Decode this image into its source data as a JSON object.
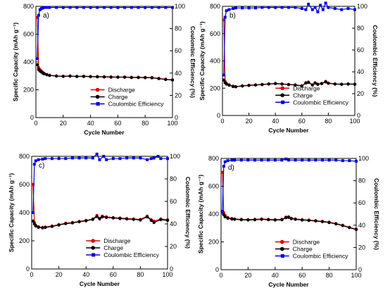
{
  "chart_data": [
    {
      "type": "line",
      "panel_label": "a)",
      "xlabel": "Cycle Number",
      "ylabel": "Specific Capacity (mAh g⁻¹)",
      "y2label": "Coulombic Efficiency (%)",
      "xlim": [
        0,
        100
      ],
      "ylim": [
        0,
        800
      ],
      "y2lim": [
        0,
        100
      ],
      "xticks": [
        "0",
        "20",
        "40",
        "60",
        "80",
        "100"
      ],
      "yticks": [
        "0",
        "200",
        "400",
        "600",
        "800"
      ],
      "y2ticks": [
        "0",
        "20",
        "40",
        "60",
        "80",
        "100"
      ],
      "legend": [
        "Discharge",
        "Charge",
        "Coulombic Efficiency"
      ],
      "series": [
        {
          "name": "Discharge",
          "axis": "left",
          "color": "#e00000",
          "x": [
            1,
            2,
            3,
            4,
            5,
            6,
            8,
            10,
            15,
            20,
            25,
            30,
            35,
            40,
            45,
            50,
            55,
            60,
            65,
            70,
            75,
            80,
            85,
            90,
            95,
            100
          ],
          "y": [
            720,
            360,
            345,
            335,
            325,
            318,
            310,
            305,
            300,
            298,
            300,
            297,
            298,
            296,
            295,
            294,
            293,
            292,
            292,
            290,
            290,
            289,
            288,
            282,
            276,
            272
          ]
        },
        {
          "name": "Charge",
          "axis": "left",
          "color": "#000000",
          "x": [
            1,
            2,
            3,
            4,
            5,
            6,
            8,
            10,
            15,
            20,
            25,
            30,
            35,
            40,
            45,
            50,
            55,
            60,
            65,
            70,
            75,
            80,
            85,
            90,
            95,
            100
          ],
          "y": [
            380,
            345,
            335,
            328,
            320,
            315,
            308,
            303,
            298,
            296,
            298,
            295,
            296,
            294,
            293,
            292,
            291,
            290,
            290,
            288,
            288,
            287,
            286,
            280,
            274,
            270
          ]
        },
        {
          "name": "Coulombic Efficiency",
          "axis": "right",
          "color": "#0000e0",
          "x": [
            1,
            2,
            3,
            4,
            5,
            6,
            8,
            10,
            15,
            20,
            25,
            30,
            35,
            40,
            45,
            50,
            55,
            60,
            65,
            70,
            75,
            80,
            85,
            90,
            95,
            100
          ],
          "y": [
            53,
            92,
            97,
            98,
            98.5,
            99,
            99,
            99,
            99,
            99,
            99,
            99,
            99,
            99,
            99,
            99,
            99,
            99,
            99,
            99,
            99,
            99,
            99,
            99,
            99,
            99
          ]
        }
      ]
    },
    {
      "type": "line",
      "panel_label": "b)",
      "xlabel": "Cycle Number",
      "ylabel": "Specific Capacity (mAh g⁻¹)",
      "y2label": "Coulombic Efficiency (%)",
      "xlim": [
        0,
        100
      ],
      "ylim": [
        0,
        800
      ],
      "y2lim": [
        0,
        100
      ],
      "xticks": [
        "0",
        "20",
        "40",
        "60",
        "80",
        "100"
      ],
      "yticks": [
        "0",
        "200",
        "400",
        "600",
        "800"
      ],
      "y2ticks": [
        "0",
        "20",
        "40",
        "60",
        "80",
        "100"
      ],
      "legend": [
        "Discharge",
        "Charge",
        "Coulombic Efficiency"
      ],
      "series": [
        {
          "name": "Discharge",
          "axis": "left",
          "color": "#e00000",
          "x": [
            1,
            2,
            3,
            5,
            8,
            10,
            15,
            20,
            25,
            30,
            35,
            40,
            45,
            50,
            55,
            60,
            63,
            65,
            68,
            70,
            72,
            75,
            78,
            80,
            85,
            90,
            95,
            100
          ],
          "y": [
            700,
            250,
            235,
            225,
            215,
            212,
            218,
            222,
            225,
            228,
            232,
            235,
            232,
            228,
            225,
            218,
            240,
            245,
            225,
            240,
            230,
            235,
            250,
            238,
            232,
            230,
            232,
            230
          ]
        },
        {
          "name": "Charge",
          "axis": "left",
          "color": "#000000",
          "x": [
            1,
            2,
            3,
            5,
            8,
            10,
            15,
            20,
            25,
            30,
            35,
            40,
            45,
            50,
            55,
            60,
            63,
            65,
            68,
            70,
            72,
            75,
            78,
            80,
            85,
            90,
            95,
            100
          ],
          "y": [
            260,
            240,
            230,
            222,
            212,
            210,
            216,
            220,
            223,
            226,
            230,
            233,
            230,
            226,
            223,
            216,
            238,
            242,
            223,
            238,
            228,
            233,
            246,
            236,
            230,
            228,
            230,
            228
          ]
        },
        {
          "name": "Coulombic Efficiency",
          "axis": "right",
          "color": "#0000e0",
          "x": [
            1,
            2,
            3,
            5,
            8,
            10,
            15,
            20,
            25,
            30,
            35,
            40,
            45,
            50,
            55,
            60,
            63,
            65,
            68,
            70,
            72,
            74,
            76,
            78,
            80,
            85,
            90,
            95,
            100
          ],
          "y": [
            37,
            90,
            96,
            97,
            98,
            98.5,
            98.5,
            98.5,
            98.5,
            99,
            99,
            99,
            99,
            99,
            99,
            98,
            97,
            102,
            97,
            99,
            95,
            101,
            97,
            103,
            99,
            98,
            97,
            98,
            97
          ]
        }
      ]
    },
    {
      "type": "line",
      "panel_label": "c)",
      "xlabel": "Cycle Number",
      "ylabel": "Specific Capacity (mAh g⁻¹)",
      "y2label": "Coulombic Efficiency (%)",
      "xlim": [
        0,
        100
      ],
      "ylim": [
        0,
        800
      ],
      "y2lim": [
        0,
        100
      ],
      "xticks": [
        "0",
        "20",
        "40",
        "60",
        "80",
        "100"
      ],
      "yticks": [
        "0",
        "200",
        "400",
        "600",
        "800"
      ],
      "y2ticks": [
        "0",
        "20",
        "40",
        "60",
        "80",
        "100"
      ],
      "legend": [
        "Discharge",
        "Charge",
        "Coulombic Efficiency"
      ],
      "series": [
        {
          "name": "Discharge",
          "axis": "left",
          "color": "#e00000",
          "x": [
            1,
            2,
            3,
            5,
            8,
            10,
            15,
            20,
            25,
            30,
            35,
            40,
            45,
            48,
            50,
            52,
            55,
            60,
            65,
            70,
            75,
            80,
            85,
            88,
            90,
            95,
            100
          ],
          "y": [
            600,
            330,
            310,
            300,
            295,
            298,
            305,
            315,
            325,
            330,
            338,
            345,
            355,
            380,
            360,
            375,
            370,
            365,
            362,
            358,
            355,
            352,
            375,
            350,
            340,
            355,
            350
          ]
        },
        {
          "name": "Charge",
          "axis": "left",
          "color": "#000000",
          "x": [
            1,
            2,
            3,
            5,
            8,
            10,
            15,
            20,
            25,
            30,
            35,
            40,
            45,
            48,
            50,
            52,
            55,
            60,
            65,
            70,
            75,
            80,
            85,
            88,
            90,
            95,
            100
          ],
          "y": [
            340,
            320,
            305,
            296,
            292,
            295,
            302,
            312,
            322,
            327,
            335,
            342,
            352,
            372,
            356,
            370,
            366,
            362,
            358,
            355,
            352,
            348,
            370,
            345,
            330,
            350,
            345
          ]
        },
        {
          "name": "Coulombic Efficiency",
          "axis": "right",
          "color": "#0000e0",
          "x": [
            1,
            2,
            3,
            5,
            8,
            10,
            15,
            20,
            25,
            30,
            35,
            40,
            45,
            48,
            50,
            53,
            55,
            60,
            65,
            70,
            75,
            80,
            85,
            88,
            90,
            93,
            95,
            100
          ],
          "y": [
            50,
            93,
            96,
            97,
            97.5,
            98,
            98,
            98,
            98,
            98.5,
            98.5,
            98.5,
            98.5,
            102,
            97,
            100,
            97,
            98,
            98,
            98.5,
            98.5,
            98.5,
            97,
            98,
            98.5,
            100,
            98,
            98
          ]
        }
      ]
    },
    {
      "type": "line",
      "panel_label": "d)",
      "xlabel": "Cycle Number",
      "ylabel": "Specific Capacity (mAh g⁻¹)",
      "y2label": "Coulombic Efficiency (%)",
      "xlim": [
        0,
        100
      ],
      "ylim": [
        0,
        800
      ],
      "y2lim": [
        0,
        100
      ],
      "xticks": [
        "0",
        "20",
        "40",
        "60",
        "80",
        "100"
      ],
      "yticks": [
        "0",
        "200",
        "400",
        "600",
        "800"
      ],
      "y2ticks": [
        "0",
        "20",
        "40",
        "60",
        "80",
        "100"
      ],
      "legend": [
        "Discharge",
        "Charge",
        "Coulombic Efficiency"
      ],
      "series": [
        {
          "name": "Discharge",
          "axis": "left",
          "color": "#e00000",
          "x": [
            1,
            2,
            3,
            5,
            8,
            10,
            15,
            20,
            25,
            30,
            35,
            40,
            45,
            48,
            50,
            52,
            55,
            60,
            65,
            70,
            75,
            80,
            85,
            90,
            95,
            100
          ],
          "y": [
            700,
            410,
            390,
            375,
            368,
            365,
            362,
            360,
            362,
            365,
            362,
            360,
            362,
            378,
            380,
            370,
            365,
            360,
            357,
            353,
            348,
            342,
            332,
            320,
            305,
            292
          ]
        },
        {
          "name": "Charge",
          "axis": "left",
          "color": "#000000",
          "x": [
            1,
            2,
            3,
            5,
            8,
            10,
            15,
            20,
            25,
            30,
            35,
            40,
            45,
            48,
            50,
            52,
            55,
            60,
            65,
            70,
            75,
            80,
            85,
            90,
            95,
            100
          ],
          "y": [
            420,
            395,
            380,
            370,
            364,
            362,
            359,
            357,
            359,
            362,
            359,
            357,
            359,
            374,
            376,
            366,
            362,
            357,
            354,
            350,
            345,
            339,
            329,
            317,
            302,
            289
          ]
        },
        {
          "name": "Coulombic Efficiency",
          "axis": "right",
          "color": "#0000e0",
          "x": [
            1,
            2,
            3,
            5,
            8,
            10,
            15,
            20,
            25,
            30,
            35,
            40,
            45,
            48,
            50,
            55,
            60,
            65,
            70,
            75,
            80,
            85,
            90,
            95,
            100
          ],
          "y": [
            52,
            93,
            97,
            98,
            98.5,
            98.5,
            98.5,
            98.5,
            98.5,
            98.5,
            98.5,
            98.5,
            98.5,
            99.5,
            98.5,
            98.5,
            98.5,
            98.5,
            98.5,
            98.5,
            98.5,
            98.5,
            98,
            98,
            97.5
          ]
        }
      ]
    }
  ]
}
